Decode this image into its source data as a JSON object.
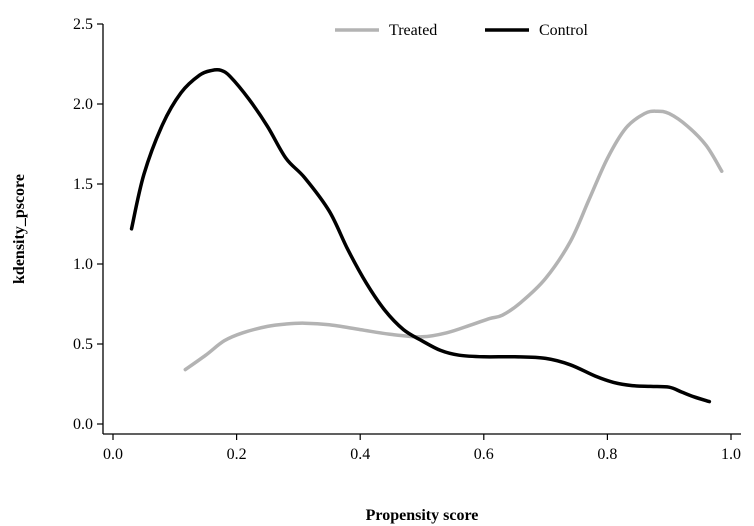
{
  "chart_data": {
    "type": "line",
    "title": "",
    "xlabel": "Propensity score",
    "ylabel": "kdensity_pscore",
    "xlim": [
      0.0,
      1.0
    ],
    "ylim": [
      0.0,
      2.5
    ],
    "xticks": [
      "0.0",
      "0.2",
      "0.4",
      "0.6",
      "0.8",
      "1.0"
    ],
    "yticks": [
      "0.0",
      "0.5",
      "1.0",
      "1.5",
      "2.0",
      "2.5"
    ],
    "grid": false,
    "legend_position": "top",
    "series": [
      {
        "name": "Treated",
        "color": "#b3b3b3",
        "x": [
          0.117,
          0.15,
          0.18,
          0.21,
          0.25,
          0.28,
          0.31,
          0.35,
          0.4,
          0.45,
          0.5,
          0.54,
          0.58,
          0.61,
          0.63,
          0.66,
          0.7,
          0.74,
          0.77,
          0.8,
          0.83,
          0.86,
          0.88,
          0.9,
          0.93,
          0.96,
          0.985
        ],
        "y": [
          0.34,
          0.43,
          0.52,
          0.57,
          0.61,
          0.625,
          0.63,
          0.62,
          0.59,
          0.56,
          0.545,
          0.57,
          0.62,
          0.66,
          0.68,
          0.76,
          0.91,
          1.14,
          1.4,
          1.66,
          1.85,
          1.94,
          1.955,
          1.94,
          1.86,
          1.74,
          1.58
        ]
      },
      {
        "name": "Control",
        "color": "#000000",
        "x": [
          0.03,
          0.05,
          0.08,
          0.11,
          0.14,
          0.16,
          0.175,
          0.19,
          0.22,
          0.25,
          0.28,
          0.31,
          0.35,
          0.38,
          0.41,
          0.44,
          0.47,
          0.5,
          0.53,
          0.56,
          0.6,
          0.65,
          0.7,
          0.74,
          0.78,
          0.81,
          0.84,
          0.87,
          0.9,
          0.92,
          0.94,
          0.965
        ],
        "y": [
          1.22,
          1.56,
          1.87,
          2.07,
          2.18,
          2.21,
          2.21,
          2.17,
          2.03,
          1.86,
          1.66,
          1.54,
          1.33,
          1.09,
          0.88,
          0.71,
          0.59,
          0.52,
          0.46,
          0.43,
          0.42,
          0.42,
          0.41,
          0.37,
          0.3,
          0.26,
          0.24,
          0.235,
          0.23,
          0.2,
          0.17,
          0.14
        ]
      }
    ]
  }
}
